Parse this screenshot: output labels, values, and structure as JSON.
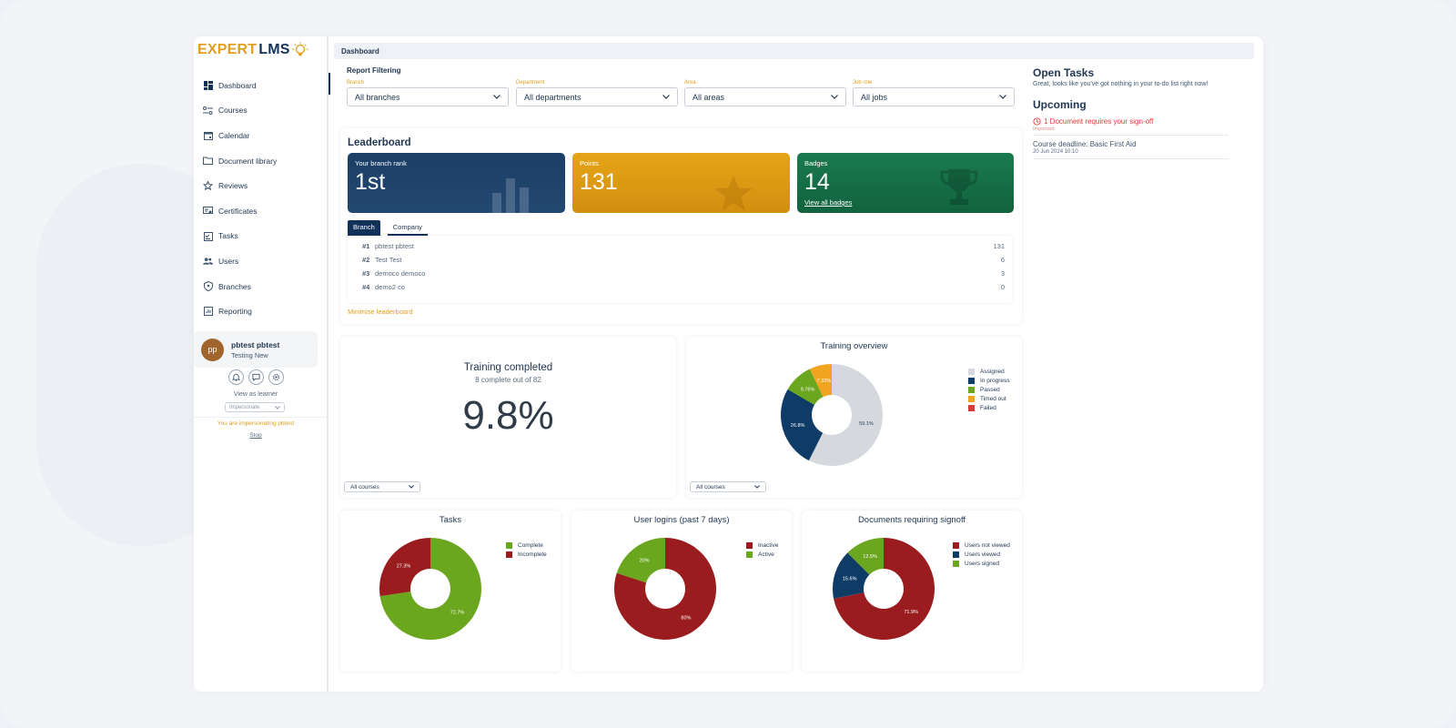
{
  "brand": {
    "part1": "EXPERT",
    "part2": "LMS"
  },
  "sidebar": {
    "items": [
      {
        "label": "Dashboard",
        "icon": "dashboard-icon"
      },
      {
        "label": "Courses",
        "icon": "courses-icon"
      },
      {
        "label": "Calendar",
        "icon": "calendar-icon"
      },
      {
        "label": "Document library",
        "icon": "folder-icon"
      },
      {
        "label": "Reviews",
        "icon": "star-icon"
      },
      {
        "label": "Certificates",
        "icon": "certificate-icon"
      },
      {
        "label": "Tasks",
        "icon": "tasks-icon"
      },
      {
        "label": "Users",
        "icon": "users-icon"
      },
      {
        "label": "Branches",
        "icon": "branches-icon"
      },
      {
        "label": "Reporting",
        "icon": "reporting-icon"
      }
    ],
    "user": {
      "initials": "pp",
      "name": "pbtest pbtest",
      "subtitle": "Testing New"
    },
    "view_as_learner": "View as learner",
    "impersonate_placeholder": "Impersonate",
    "impersonating_notice": "You are impersonating pbtest",
    "stop_label": "Stop"
  },
  "breadcrumb": "Dashboard",
  "filters": {
    "title": "Report Filtering",
    "items": [
      {
        "label": "Branch",
        "value": "All branches"
      },
      {
        "label": "Department",
        "value": "All departments"
      },
      {
        "label": "Area",
        "value": "All areas"
      },
      {
        "label": "Job role",
        "value": "All jobs"
      }
    ]
  },
  "leaderboard": {
    "title": "Leaderboard",
    "rank": {
      "label": "Your branch rank",
      "value": "1st"
    },
    "points": {
      "label": "Points",
      "value": "131"
    },
    "badges": {
      "label": "Badges",
      "value": "14",
      "link": "View all badges"
    },
    "tabs": [
      "Branch",
      "Company"
    ],
    "rows": [
      {
        "rank": "#1",
        "name": "pbtest pbtest",
        "score": "131"
      },
      {
        "rank": "#2",
        "name": "Test Test",
        "score": "6"
      },
      {
        "rank": "#3",
        "name": "democo democo",
        "score": "3"
      },
      {
        "rank": "#4",
        "name": "demo2 co",
        "score": "0"
      }
    ],
    "minimise": "Minimise leaderboard"
  },
  "training_completed": {
    "title": "Training completed",
    "subtitle": "8 complete out of 82",
    "value": "9.8%",
    "course_filter": "All courses"
  },
  "colors": {
    "navy": "#13325a",
    "gold": "#e19f1c",
    "green": "#1f7a4f",
    "chart_green": "#6aa61e",
    "chart_red": "#9b1c1f",
    "chart_navy": "#0f3c66",
    "chart_grey": "#d5d9de",
    "chart_orange": "#f1a41f",
    "chart_failed": "#d93a36"
  },
  "chart_data": [
    {
      "type": "pie",
      "title": "Training overview",
      "categories": [
        "Assigned",
        "In progress",
        "Passed",
        "Timed out",
        "Failed"
      ],
      "values": [
        59.1,
        26.8,
        9.76,
        7.32,
        0
      ],
      "labels": [
        "59.1%",
        "26.8%",
        "9.76%",
        "7.32%",
        ""
      ],
      "legend": "right"
    },
    {
      "type": "pie",
      "title": "Tasks",
      "categories": [
        "Complete",
        "Incomplete"
      ],
      "values": [
        72.7,
        27.3
      ],
      "labels": [
        "72.7%",
        "27.3%"
      ],
      "legend": "right"
    },
    {
      "type": "pie",
      "title": "User logins (past 7 days)",
      "categories": [
        "Inactive",
        "Active"
      ],
      "values": [
        80,
        20
      ],
      "labels": [
        "80%",
        "20%"
      ],
      "legend": "right"
    },
    {
      "type": "pie",
      "title": "Documents requiring signoff",
      "categories": [
        "Users not viewed",
        "Users viewed",
        "Users signed"
      ],
      "values": [
        71.9,
        15.6,
        12.5
      ],
      "labels": [
        "71.9%",
        "15.6%",
        "12.5%"
      ],
      "legend": "right"
    }
  ],
  "training_overview_filter": "All courses",
  "right_panel": {
    "open_tasks_title": "Open Tasks",
    "open_tasks_message": "Great, looks like you've got nothing in your to-do list right now!",
    "upcoming_title": "Upcoming",
    "signoff_text": "1 Document requires your sign-off",
    "signoff_tag": "Important",
    "deadline_text": "Course deadline: Basic First Aid",
    "deadline_date": "20 Jun 2024 10:10"
  }
}
